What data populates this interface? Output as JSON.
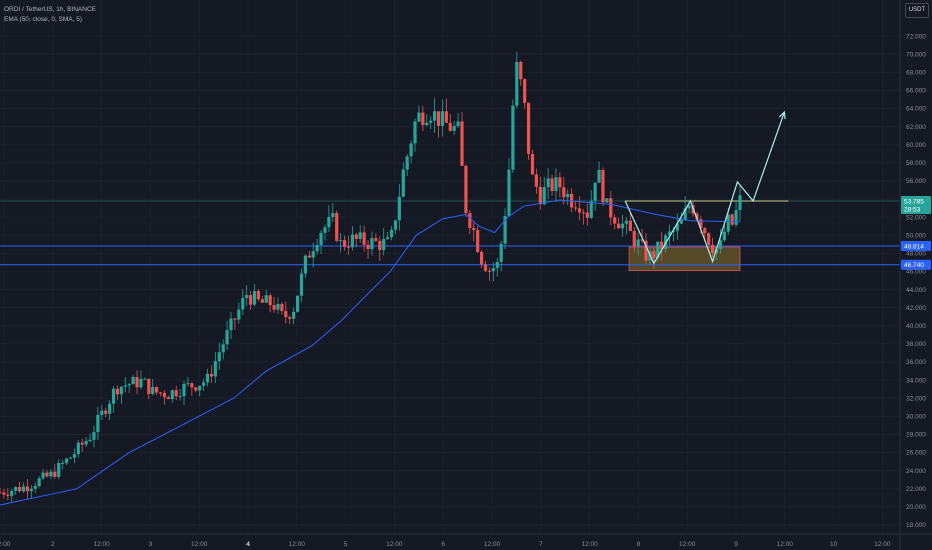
{
  "header": {
    "symbol": "ORDI / TetherUS, 1h, BINANCE",
    "indicator": "EMA (50, close, 0, SMA, 5)",
    "currency_button": "USDT"
  },
  "colors": {
    "background": "#151924",
    "grid": "#1f2330",
    "up": "#26a69a",
    "down": "#ef5350",
    "ema": "#2962ff",
    "level_line": "#2962ff",
    "resistance_line": "#c8d08a",
    "projection": "#a5f0ec",
    "zone_fill": "#6b5a2a",
    "zone_border": "#d9534f"
  },
  "price_tags": {
    "last": "53.785",
    "countdown": "28:53",
    "level_upper": "48.814",
    "level_lower": "46.740"
  },
  "chart_data": {
    "type": "candlestick",
    "price_axis": {
      "range": [
        17,
        74
      ],
      "tick_labels": [
        "18.000",
        "20.000",
        "22.000",
        "24.000",
        "26.000",
        "28.000",
        "30.000",
        "32.000",
        "34.000",
        "36.000",
        "38.000",
        "40.000",
        "42.000",
        "44.000",
        "46.000",
        "48.000",
        "50.000",
        "52.000",
        "54.000",
        "56.000",
        "58.000",
        "60.000",
        "62.000",
        "64.000",
        "66.000",
        "68.000",
        "70.000",
        "72.000"
      ]
    },
    "time_axis": {
      "tick_labels": [
        "2:00",
        "2",
        "12:00",
        "3",
        "12:00",
        "4",
        "12:00",
        "5",
        "12:00",
        "6",
        "12:00",
        "7",
        "12:00",
        "8",
        "12:00",
        "9",
        "12:00",
        "10",
        "12:00"
      ],
      "bold_labels": [
        "4"
      ]
    },
    "anchors": [
      {
        "t": 1,
        "c": 21.6
      },
      {
        "t": 20,
        "c": 22.2
      },
      {
        "t": 40,
        "c": 23.5
      },
      {
        "t": 55,
        "c": 25.5
      },
      {
        "t": 70,
        "c": 27.8
      },
      {
        "t": 80,
        "c": 30.5
      },
      {
        "t": 90,
        "c": 33.2
      },
      {
        "t": 100,
        "c": 33.6
      },
      {
        "t": 110,
        "c": 33.9
      },
      {
        "t": 118,
        "c": 32.7
      },
      {
        "t": 130,
        "c": 32.5
      },
      {
        "t": 140,
        "c": 33.1
      },
      {
        "t": 150,
        "c": 33.5
      },
      {
        "t": 160,
        "c": 34.0
      },
      {
        "t": 170,
        "c": 37.5
      },
      {
        "t": 180,
        "c": 40.5
      },
      {
        "t": 190,
        "c": 43.5
      },
      {
        "t": 200,
        "c": 42.5
      },
      {
        "t": 210,
        "c": 42.5
      },
      {
        "t": 218,
        "c": 40.8
      },
      {
        "t": 226,
        "c": 42.0
      },
      {
        "t": 236,
        "c": 47.5
      },
      {
        "t": 246,
        "c": 50.5
      },
      {
        "t": 256,
        "c": 51.5
      },
      {
        "t": 262,
        "c": 49.0
      },
      {
        "t": 270,
        "c": 49.5
      },
      {
        "t": 285,
        "c": 49.2
      },
      {
        "t": 300,
        "c": 49.0
      },
      {
        "t": 310,
        "c": 57.0
      },
      {
        "t": 320,
        "c": 63.0
      },
      {
        "t": 330,
        "c": 63.8
      },
      {
        "t": 340,
        "c": 62.5
      },
      {
        "t": 352,
        "c": 61.5
      },
      {
        "t": 358,
        "c": 53.0
      },
      {
        "t": 364,
        "c": 50.5
      },
      {
        "t": 370,
        "c": 47.5
      },
      {
        "t": 376,
        "c": 46.2
      },
      {
        "t": 383,
        "c": 46.8
      },
      {
        "t": 390,
        "c": 55.0
      },
      {
        "t": 396,
        "c": 69.0
      },
      {
        "t": 402,
        "c": 65.5
      },
      {
        "t": 408,
        "c": 56.5
      },
      {
        "t": 415,
        "c": 54.5
      },
      {
        "t": 423,
        "c": 55.5
      },
      {
        "t": 430,
        "c": 55.5
      },
      {
        "t": 438,
        "c": 54.0
      },
      {
        "t": 444,
        "c": 53.8
      },
      {
        "t": 452,
        "c": 52.3
      },
      {
        "t": 458,
        "c": 57.5
      },
      {
        "t": 466,
        "c": 53.0
      },
      {
        "t": 474,
        "c": 51.8
      },
      {
        "t": 482,
        "c": 50.5
      },
      {
        "t": 490,
        "c": 49.0
      },
      {
        "t": 498,
        "c": 47.5
      },
      {
        "t": 506,
        "c": 48.5
      },
      {
        "t": 514,
        "c": 50.0
      },
      {
        "t": 522,
        "c": 51.0
      },
      {
        "t": 530,
        "c": 53.7
      },
      {
        "t": 538,
        "c": 51.5
      },
      {
        "t": 546,
        "c": 49.0
      },
      {
        "t": 552,
        "c": 48.2
      },
      {
        "t": 558,
        "c": 51.5
      },
      {
        "t": 562,
        "c": 51.2
      },
      {
        "t": 568,
        "c": 53.78
      }
    ],
    "ema": [
      {
        "t": 1,
        "v": 20.2
      },
      {
        "t": 60,
        "v": 22.0
      },
      {
        "t": 100,
        "v": 26.0
      },
      {
        "t": 140,
        "v": 29.0
      },
      {
        "t": 180,
        "v": 32.0
      },
      {
        "t": 205,
        "v": 35.0
      },
      {
        "t": 240,
        "v": 37.8
      },
      {
        "t": 262,
        "v": 40.5
      },
      {
        "t": 286,
        "v": 44.0
      },
      {
        "t": 300,
        "v": 46.0
      },
      {
        "t": 320,
        "v": 50.0
      },
      {
        "t": 340,
        "v": 51.8
      },
      {
        "t": 358,
        "v": 52.3
      },
      {
        "t": 368,
        "v": 51.0
      },
      {
        "t": 380,
        "v": 50.3
      },
      {
        "t": 390,
        "v": 52.0
      },
      {
        "t": 402,
        "v": 53.2
      },
      {
        "t": 430,
        "v": 53.9
      },
      {
        "t": 470,
        "v": 53.4
      },
      {
        "t": 500,
        "v": 52.4
      },
      {
        "t": 530,
        "v": 51.6
      },
      {
        "t": 568,
        "v": 51.5
      }
    ],
    "horizontal_levels": [
      48.814,
      46.74
    ],
    "resistance_level": 53.785,
    "zone": {
      "t_start": 483,
      "t_end": 568,
      "price_top": 48.7,
      "price_bottom": 46.1
    },
    "projection_path": [
      {
        "t": 480,
        "p": 53.8
      },
      {
        "t": 502,
        "p": 46.9
      },
      {
        "t": 530,
        "p": 53.8
      },
      {
        "t": 547,
        "p": 47.1
      },
      {
        "t": 566,
        "p": 55.9
      },
      {
        "t": 578,
        "p": 53.8
      },
      {
        "t": 602,
        "p": 63.6
      }
    ]
  }
}
